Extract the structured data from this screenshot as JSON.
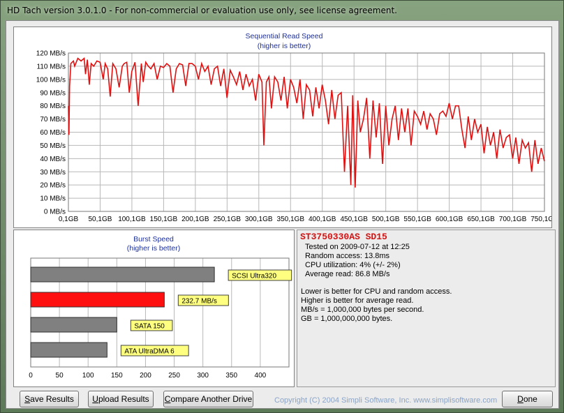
{
  "window": {
    "title": "HD Tach version 3.0.1.0  - For non-commercial or evaluation use only, see license agreement."
  },
  "sequential": {
    "title": "Sequential Read Speed",
    "subtitle": "(higher is better)",
    "y_ticks": [
      "120 MB/s",
      "110 MB/s",
      "100 MB/s",
      "90 MB/s",
      "80 MB/s",
      "70 MB/s",
      "60 MB/s",
      "50 MB/s",
      "40 MB/s",
      "30 MB/s",
      "20 MB/s",
      "10 MB/s",
      "0 MB/s"
    ],
    "x_ticks": [
      "0,1GB",
      "50,1GB",
      "100,1GB",
      "150,1GB",
      "200,1GB",
      "250,1GB",
      "300,1GB",
      "350,1GB",
      "400,1GB",
      "450,1GB",
      "500,1GB",
      "550,1GB",
      "600,1GB",
      "650,1GB",
      "700,1GB",
      "750,1GB"
    ],
    "line_color": "#e01010"
  },
  "chart_data": [
    {
      "type": "line",
      "title": "Sequential Read Speed",
      "subtitle": "(higher is better)",
      "xlim": [
        0.1,
        750.1
      ],
      "ylim": [
        0,
        120
      ],
      "grid": true,
      "x_unit": "GB",
      "y_unit": "MB/s",
      "series": [
        {
          "x": [
            0.1,
            1,
            2,
            4,
            6,
            8,
            10,
            15,
            20,
            25,
            27,
            30,
            33,
            36,
            40,
            45,
            50,
            55,
            58,
            62,
            66,
            70,
            75,
            80,
            85,
            88,
            92,
            96,
            100,
            105,
            110,
            115,
            118,
            122,
            126,
            130,
            135,
            140,
            145,
            150,
            155,
            160,
            165,
            170,
            175,
            180,
            185,
            190,
            195,
            200,
            205,
            210,
            215,
            220,
            225,
            230,
            235,
            240,
            245,
            250,
            255,
            260,
            265,
            270,
            275,
            280,
            285,
            290,
            295,
            300,
            305,
            308,
            312,
            316,
            320,
            325,
            330,
            335,
            340,
            345,
            350,
            355,
            360,
            365,
            370,
            375,
            380,
            385,
            390,
            395,
            400,
            405,
            410,
            415,
            420,
            425,
            430,
            435,
            440,
            445,
            448,
            452,
            456,
            460,
            465,
            470,
            475,
            480,
            485,
            490,
            495,
            500,
            505,
            510,
            515,
            520,
            525,
            530,
            535,
            540,
            545,
            550,
            555,
            560,
            565,
            570,
            575,
            580,
            585,
            590,
            595,
            600,
            605,
            610,
            615,
            620,
            625,
            630,
            635,
            640,
            645,
            650,
            655,
            660,
            665,
            670,
            675,
            680,
            685,
            690,
            695,
            700,
            705,
            710,
            715,
            720,
            725,
            730,
            735,
            740,
            745,
            750
          ],
          "values": [
            80,
            58,
            95,
            112,
            113,
            114,
            110,
            116,
            114,
            116,
            104,
            115,
            96,
            112,
            110,
            114,
            113,
            100,
            112,
            108,
            87,
            112,
            108,
            94,
            110,
            112,
            113,
            90,
            106,
            113,
            80,
            112,
            98,
            113,
            110,
            108,
            112,
            100,
            110,
            109,
            112,
            110,
            90,
            108,
            112,
            111,
            95,
            112,
            112,
            110,
            100,
            112,
            106,
            110,
            96,
            108,
            110,
            95,
            108,
            86,
            107,
            102,
            96,
            106,
            92,
            104,
            95,
            100,
            84,
            104,
            98,
            50,
            98,
            102,
            78,
            102,
            98,
            84,
            102,
            78,
            100,
            94,
            82,
            100,
            70,
            96,
            92,
            72,
            94,
            78,
            96,
            84,
            66,
            92,
            70,
            88,
            90,
            30,
            80,
            20,
            88,
            18,
            84,
            60,
            70,
            86,
            40,
            84,
            56,
            82,
            36,
            80,
            50,
            70,
            80,
            54,
            78,
            60,
            78,
            50,
            76,
            72,
            66,
            76,
            62,
            74,
            70,
            58,
            74,
            76,
            72,
            82,
            70,
            80,
            80,
            62,
            48,
            72,
            54,
            70,
            60,
            66,
            44,
            64,
            50,
            60,
            40,
            62,
            48,
            56,
            58,
            40,
            56,
            36,
            54,
            48,
            52,
            30,
            54,
            36,
            48,
            38
          ]
        }
      ]
    },
    {
      "type": "bar",
      "title": "Burst Speed",
      "subtitle": "(higher is better)",
      "orientation": "horizontal",
      "categories": [
        "SCSI Ultra320",
        "232.7 MB/s",
        "SATA 150",
        "ATA UltraDMA 6"
      ],
      "values": [
        320,
        232.7,
        150,
        133
      ],
      "xlim": [
        0,
        450
      ],
      "x_ticks": [
        "0",
        "50",
        "100",
        "150",
        "200",
        "250",
        "300",
        "350",
        "400"
      ],
      "grid": true,
      "colors": [
        "#808080",
        "#ff1010",
        "#808080",
        "#808080"
      ]
    }
  ],
  "burst": {
    "title": "Burst Speed",
    "subtitle": "(higher is better)",
    "label_bg": "#ffff80"
  },
  "info": {
    "drive": "ST3750330AS SD15",
    "tested": "Tested on 2009-07-12 at 12:25",
    "random_access": "Random access: 13.8ms",
    "cpu": "CPU utilization: 4% (+/- 2%)",
    "avg_read": "Average read: 86.8 MB/s",
    "notes": [
      "Lower is better for CPU and random access.",
      "Higher is better for average read.",
      "MB/s = 1,000,000 bytes per second.",
      "GB = 1,000,000,000 bytes."
    ]
  },
  "buttons": {
    "save": "Save Results",
    "upload": "Upload Results",
    "compare": "Compare Another Drive",
    "done": "Done"
  },
  "copyright": "Copyright (C) 2004 Simpli Software, Inc. www.simplisoftware.com"
}
